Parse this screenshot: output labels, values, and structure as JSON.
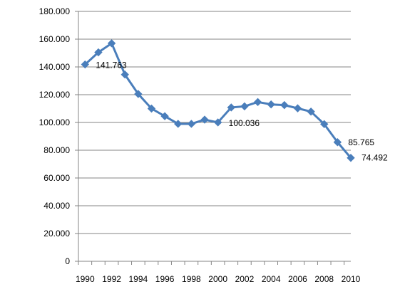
{
  "chart_data": {
    "type": "line",
    "title": "",
    "xlabel": "",
    "ylabel": "",
    "x": [
      1990,
      1991,
      1992,
      1993,
      1994,
      1995,
      1996,
      1997,
      1998,
      1999,
      2000,
      2001,
      2002,
      2003,
      2004,
      2005,
      2006,
      2007,
      2008,
      2009,
      2010
    ],
    "series": [
      {
        "values": [
          141763,
          150500,
          157000,
          134500,
          120500,
          110000,
          104500,
          99000,
          99000,
          102000,
          100036,
          110800,
          111600,
          114700,
          113000,
          112500,
          110200,
          107800,
          98800,
          85765,
          74492
        ],
        "color": "#4a7ebb",
        "marker": "diamond"
      }
    ],
    "ylim": [
      0,
      180000
    ],
    "yticks": [
      "0",
      "20.000",
      "40.000",
      "60.000",
      "80.000",
      "100.000",
      "120.000",
      "140.000",
      "160.000",
      "180.000"
    ],
    "xticks": [
      "1990",
      "1992",
      "1994",
      "1996",
      "1998",
      "2000",
      "2002",
      "2004",
      "2006",
      "2008",
      "2010"
    ],
    "data_labels": [
      {
        "x": 1990,
        "text": "141.763"
      },
      {
        "x": 2000,
        "text": "100.036"
      },
      {
        "x": 2009,
        "text": "85.765"
      },
      {
        "x": 2010,
        "text": "74.492"
      }
    ],
    "grid": true,
    "legend": "none"
  }
}
